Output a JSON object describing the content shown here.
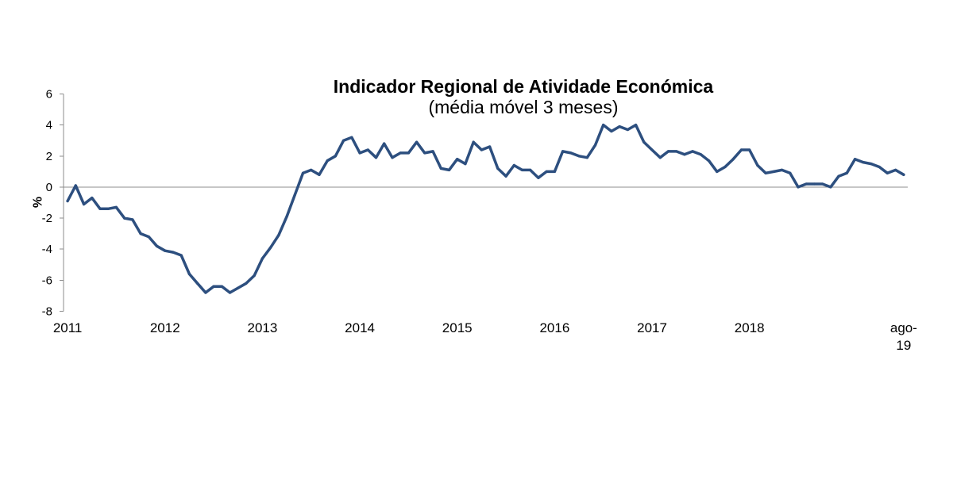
{
  "chart_data": {
    "type": "line",
    "title": "Indicador Regional de Atividade Económica",
    "subtitle": "(média móvel 3 meses)",
    "ylabel": "%",
    "ylim": [
      -8,
      6
    ],
    "y_ticks": [
      6,
      4,
      2,
      0,
      -2,
      -4,
      -6,
      -8
    ],
    "x_ticks": [
      {
        "label": "2011",
        "x": "2011-01"
      },
      {
        "label": "2012",
        "x": "2012-01"
      },
      {
        "label": "2013",
        "x": "2013-01"
      },
      {
        "label": "2014",
        "x": "2014-01"
      },
      {
        "label": "2015",
        "x": "2015-01"
      },
      {
        "label": "2016",
        "x": "2016-01"
      },
      {
        "label": "2017",
        "x": "2017-01"
      },
      {
        "label": "2018",
        "x": "2018-01"
      },
      {
        "label": "ago-19",
        "x": "2019-08"
      }
    ],
    "grid": false,
    "x": [
      "2011-01",
      "2011-02",
      "2011-03",
      "2011-04",
      "2011-05",
      "2011-06",
      "2011-07",
      "2011-08",
      "2011-09",
      "2011-10",
      "2011-11",
      "2011-12",
      "2012-01",
      "2012-02",
      "2012-03",
      "2012-04",
      "2012-05",
      "2012-06",
      "2012-07",
      "2012-08",
      "2012-09",
      "2012-10",
      "2012-11",
      "2012-12",
      "2013-01",
      "2013-02",
      "2013-03",
      "2013-04",
      "2013-05",
      "2013-06",
      "2013-07",
      "2013-08",
      "2013-09",
      "2013-10",
      "2013-11",
      "2013-12",
      "2014-01",
      "2014-02",
      "2014-03",
      "2014-04",
      "2014-05",
      "2014-06",
      "2014-07",
      "2014-08",
      "2014-09",
      "2014-10",
      "2014-11",
      "2014-12",
      "2015-01",
      "2015-02",
      "2015-03",
      "2015-04",
      "2015-05",
      "2015-06",
      "2015-07",
      "2015-08",
      "2015-09",
      "2015-10",
      "2015-11",
      "2015-12",
      "2016-01",
      "2016-02",
      "2016-03",
      "2016-04",
      "2016-05",
      "2016-06",
      "2016-07",
      "2016-08",
      "2016-09",
      "2016-10",
      "2016-11",
      "2016-12",
      "2017-01",
      "2017-02",
      "2017-03",
      "2017-04",
      "2017-05",
      "2017-06",
      "2017-07",
      "2017-08",
      "2017-09",
      "2017-10",
      "2017-11",
      "2017-12",
      "2018-01",
      "2018-02",
      "2018-03",
      "2018-04",
      "2018-05",
      "2018-06",
      "2018-07",
      "2018-08",
      "2018-09",
      "2018-10",
      "2018-11",
      "2018-12",
      "2019-01",
      "2019-02",
      "2019-03",
      "2019-04",
      "2019-05",
      "2019-06",
      "2019-07",
      "2019-08"
    ],
    "series": [
      {
        "color": "#2d4f7f",
        "values": [
          -0.9,
          0.1,
          -1.1,
          -0.7,
          -1.4,
          -1.4,
          -1.3,
          -2.0,
          -2.1,
          -3.0,
          -3.2,
          -3.8,
          -4.1,
          -4.2,
          -4.4,
          -5.6,
          -6.2,
          -6.8,
          -6.4,
          -6.4,
          -6.8,
          -6.5,
          -6.2,
          -5.7,
          -4.6,
          -3.9,
          -3.1,
          -1.9,
          -0.5,
          0.9,
          1.1,
          0.8,
          1.7,
          2.0,
          3.0,
          3.2,
          2.2,
          2.4,
          1.9,
          2.8,
          1.9,
          2.2,
          2.2,
          2.9,
          2.2,
          2.3,
          1.2,
          1.1,
          1.8,
          1.5,
          2.9,
          2.4,
          2.6,
          1.2,
          0.7,
          1.4,
          1.1,
          1.1,
          0.6,
          1.0,
          1.0,
          2.3,
          2.2,
          2.0,
          1.9,
          2.7,
          4.0,
          3.6,
          3.9,
          3.7,
          4.0,
          2.9,
          2.4,
          1.9,
          2.3,
          2.3,
          2.1,
          2.3,
          2.1,
          1.7,
          1.0,
          1.3,
          1.8,
          2.4,
          2.4,
          1.4,
          0.9,
          1.0,
          1.1,
          0.9,
          0.0,
          0.2,
          0.2,
          0.2,
          0.0,
          0.7,
          0.9,
          1.8,
          1.6,
          1.5,
          1.3,
          0.9,
          1.1,
          0.8
        ]
      }
    ]
  }
}
